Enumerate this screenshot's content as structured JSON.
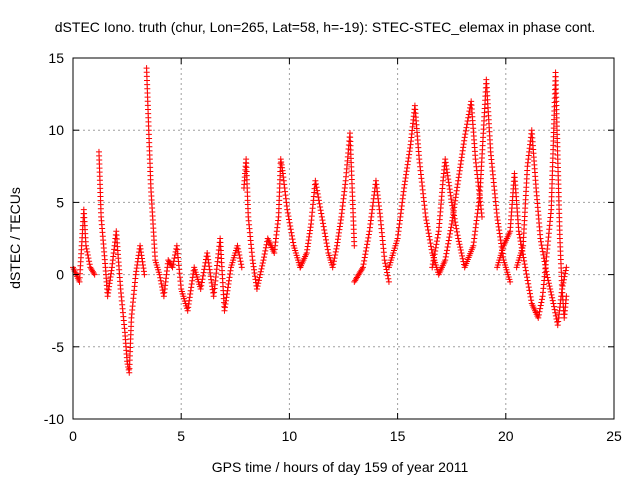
{
  "chart_data": {
    "type": "scatter",
    "title": "dSTEC Iono. truth (chur, Lon=265, Lat=58, h=-19): STEC-STEC_elemax in phase cont.",
    "xlabel": "GPS time / hours of day 159 of year 2011",
    "ylabel": "dSTEC  / TECUs",
    "xlim": [
      0,
      25
    ],
    "ylim": [
      -10,
      15
    ],
    "xticks": [
      0,
      5,
      10,
      15,
      20,
      25
    ],
    "yticks": [
      -10,
      -5,
      0,
      5,
      10,
      15
    ],
    "xtick_labels": [
      "0",
      "5",
      "10",
      "15",
      "20",
      "25"
    ],
    "ytick_labels": [
      "-10",
      "-5",
      "0",
      "5",
      "10",
      "15"
    ],
    "grid": true,
    "marker": "plus",
    "color": "#ff0000",
    "segments": [
      [
        [
          0.0,
          0.5
        ],
        [
          0.3,
          -0.5
        ],
        [
          0.5,
          4.5
        ],
        [
          0.6,
          2.0
        ],
        [
          0.8,
          0.5
        ],
        [
          1.0,
          0.0
        ]
      ],
      [
        [
          1.2,
          8.5
        ],
        [
          1.3,
          4.0
        ],
        [
          1.5,
          0.5
        ],
        [
          1.6,
          -1.5
        ],
        [
          1.8,
          0.5
        ],
        [
          2.0,
          3.0
        ],
        [
          2.2,
          -1.0
        ],
        [
          2.4,
          -4.0
        ],
        [
          2.5,
          -6.0
        ],
        [
          2.6,
          -6.8
        ],
        [
          2.7,
          -3.0
        ],
        [
          2.9,
          0.0
        ],
        [
          3.1,
          2.0
        ],
        [
          3.3,
          0.0
        ]
      ],
      [
        [
          3.4,
          14.3
        ],
        [
          3.5,
          10.0
        ],
        [
          3.6,
          6.0
        ],
        [
          3.7,
          3.5
        ],
        [
          3.8,
          1.0
        ],
        [
          4.0,
          0.0
        ],
        [
          4.2,
          -1.5
        ],
        [
          4.4,
          1.0
        ],
        [
          4.6,
          0.5
        ],
        [
          4.8,
          2.0
        ],
        [
          5.0,
          -1.0
        ],
        [
          5.3,
          -2.5
        ],
        [
          5.6,
          0.5
        ],
        [
          5.9,
          -1.0
        ],
        [
          6.2,
          1.5
        ],
        [
          6.5,
          -1.5
        ],
        [
          6.8,
          2.5
        ],
        [
          7.0,
          -2.5
        ],
        [
          7.3,
          0.5
        ],
        [
          7.6,
          2.0
        ],
        [
          7.8,
          0.5
        ]
      ],
      [
        [
          7.9,
          6.0
        ],
        [
          8.0,
          8.0
        ],
        [
          8.1,
          4.0
        ],
        [
          8.3,
          1.0
        ],
        [
          8.5,
          -1.0
        ],
        [
          8.8,
          1.0
        ],
        [
          9.0,
          2.5
        ],
        [
          9.3,
          1.5
        ],
        [
          9.5,
          4.0
        ],
        [
          9.6,
          8.0
        ],
        [
          9.7,
          7.0
        ],
        [
          9.9,
          4.5
        ],
        [
          10.2,
          2.0
        ],
        [
          10.5,
          0.5
        ]
      ],
      [
        [
          10.5,
          0.5
        ],
        [
          10.8,
          1.5
        ],
        [
          11.0,
          3.5
        ],
        [
          11.2,
          6.5
        ],
        [
          11.5,
          4.0
        ],
        [
          11.8,
          1.5
        ],
        [
          12.0,
          0.5
        ],
        [
          12.2,
          2.0
        ],
        [
          12.4,
          4.0
        ],
        [
          12.6,
          6.5
        ],
        [
          12.8,
          9.8
        ],
        [
          12.9,
          6.0
        ],
        [
          13.0,
          2.0
        ]
      ],
      [
        [
          13.0,
          -0.5
        ],
        [
          13.4,
          0.5
        ],
        [
          13.7,
          3.0
        ],
        [
          14.0,
          6.5
        ],
        [
          14.2,
          4.0
        ],
        [
          14.4,
          1.0
        ],
        [
          14.6,
          -0.5
        ]
      ],
      [
        [
          14.6,
          0.5
        ],
        [
          15.0,
          2.5
        ],
        [
          15.3,
          6.0
        ],
        [
          15.6,
          9.0
        ],
        [
          15.8,
          11.7
        ],
        [
          16.0,
          8.0
        ],
        [
          16.3,
          4.0
        ],
        [
          16.6,
          1.5
        ],
        [
          16.9,
          0.0
        ],
        [
          17.2,
          1.0
        ],
        [
          17.5,
          3.5
        ],
        [
          17.8,
          6.5
        ],
        [
          18.1,
          9.5
        ],
        [
          18.4,
          12.0
        ],
        [
          18.6,
          8.0
        ],
        [
          18.9,
          4.0
        ]
      ],
      [
        [
          16.6,
          0.5
        ],
        [
          16.9,
          3.0
        ],
        [
          17.1,
          6.5
        ],
        [
          17.2,
          8.0
        ],
        [
          17.5,
          5.0
        ],
        [
          17.8,
          2.5
        ],
        [
          18.1,
          0.5
        ],
        [
          18.5,
          2.0
        ],
        [
          18.8,
          5.5
        ],
        [
          19.1,
          13.5
        ],
        [
          19.3,
          8.5
        ],
        [
          19.6,
          4.0
        ],
        [
          19.9,
          1.0
        ],
        [
          20.2,
          -0.5
        ]
      ],
      [
        [
          19.6,
          0.5
        ],
        [
          19.9,
          2.0
        ],
        [
          20.2,
          3.0
        ],
        [
          20.4,
          7.0
        ],
        [
          20.6,
          3.0
        ],
        [
          20.9,
          0.5
        ],
        [
          21.2,
          -2.0
        ],
        [
          21.5,
          -3.0
        ],
        [
          21.7,
          -1.5
        ],
        [
          21.9,
          1.5
        ],
        [
          22.1,
          4.5
        ],
        [
          22.3,
          14.0
        ],
        [
          22.4,
          8.0
        ],
        [
          22.5,
          2.5
        ],
        [
          22.6,
          -1.0
        ],
        [
          22.7,
          -3.0
        ],
        [
          22.8,
          -1.5
        ]
      ],
      [
        [
          20.5,
          0.5
        ],
        [
          20.8,
          2.0
        ],
        [
          21.0,
          7.5
        ],
        [
          21.2,
          10.0
        ],
        [
          21.4,
          6.0
        ],
        [
          21.6,
          2.5
        ],
        [
          21.9,
          0.0
        ],
        [
          22.2,
          -2.0
        ],
        [
          22.4,
          -3.5
        ],
        [
          22.6,
          -1.0
        ],
        [
          22.8,
          0.5
        ]
      ]
    ]
  }
}
